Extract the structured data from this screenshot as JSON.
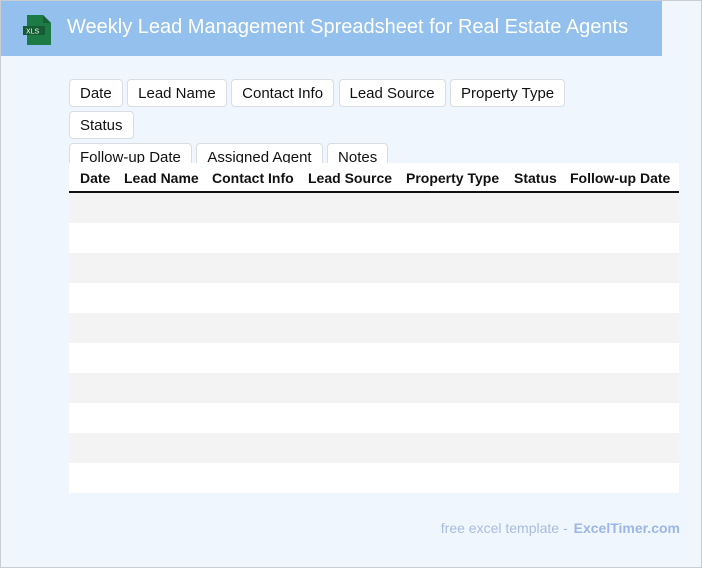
{
  "header": {
    "title": "Weekly Lead Management Spreadsheet for Real Estate Agents",
    "logo_text": "XLS",
    "icon": "xls-file-icon"
  },
  "chips": [
    "Date",
    "Lead Name",
    "Contact Info",
    "Lead Source",
    "Property Type",
    "Status",
    "Follow-up Date",
    "Assigned Agent",
    "Notes"
  ],
  "table": {
    "columns": [
      "Date",
      "Lead Name",
      "Contact Info",
      "Lead Source",
      "Property Type",
      "Status",
      "Follow-up Date"
    ],
    "rows": [
      [],
      [],
      [],
      [],
      [],
      [],
      [],
      [],
      [],
      []
    ]
  },
  "footer": {
    "text": "free excel template -",
    "brand": "ExcelTimer.com"
  }
}
